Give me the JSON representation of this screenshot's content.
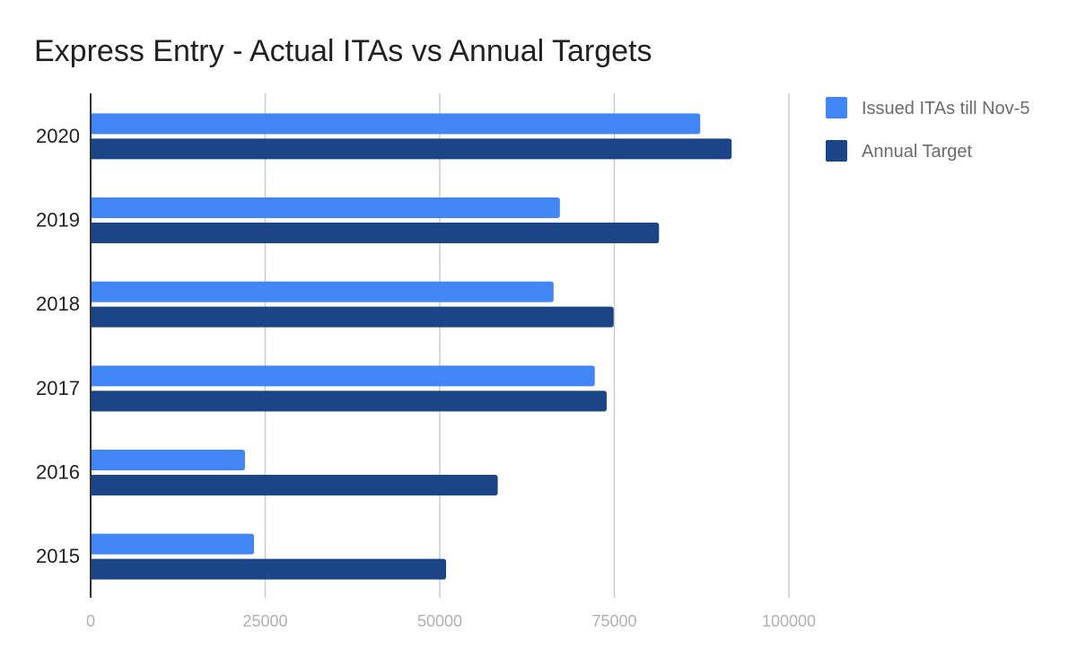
{
  "chart_data": {
    "type": "bar",
    "orientation": "horizontal",
    "title": "Express Entry - Actual ITAs vs Annual Targets",
    "categories": [
      "2020",
      "2019",
      "2018",
      "2017",
      "2016",
      "2015"
    ],
    "series": [
      {
        "name": "Issued ITAs till Nov-5",
        "color": "#4285f4",
        "values": [
          87300,
          67200,
          66300,
          72200,
          22100,
          23400
        ]
      },
      {
        "name": "Annual Target",
        "color": "#1c4587",
        "values": [
          91800,
          81400,
          74900,
          73900,
          58300,
          50900
        ]
      }
    ],
    "xlim": [
      0,
      100000
    ],
    "xticks": [
      "0",
      "25000",
      "50000",
      "75000",
      "100000"
    ],
    "xtick_values": [
      0,
      25000,
      50000,
      75000,
      100000
    ],
    "grid": true,
    "legend_position": "right"
  }
}
